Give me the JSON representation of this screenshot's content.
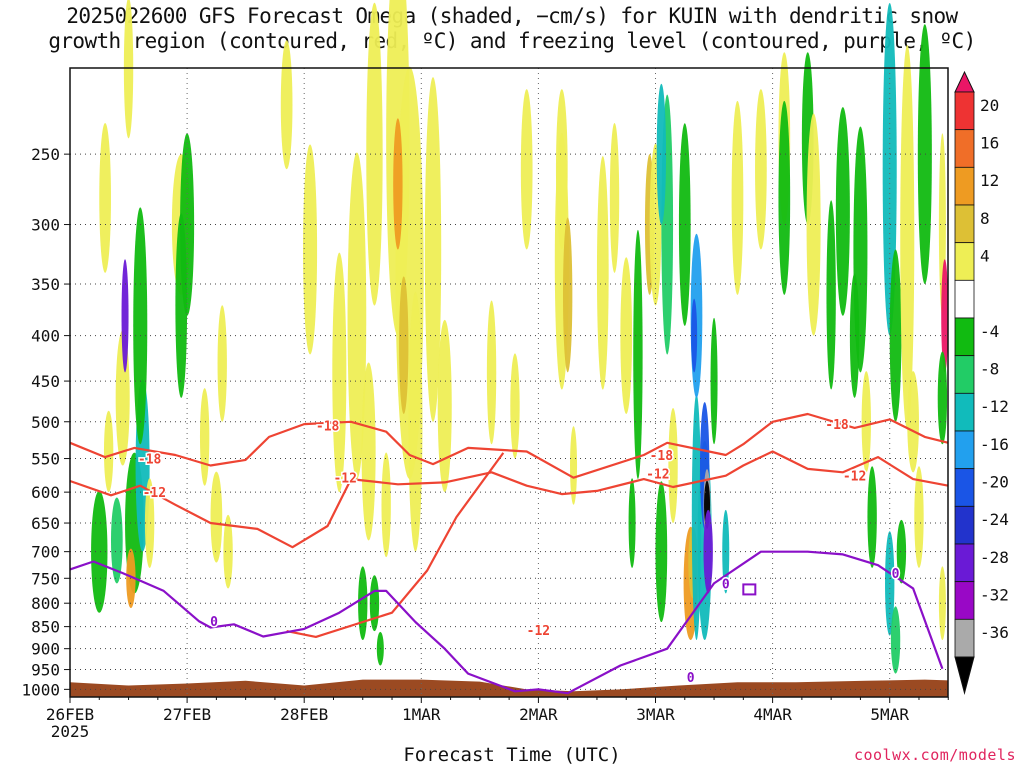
{
  "title_line1": "2025022600 GFS Forecast Omega (shaded, −cm/s) for KUIN with dendritic snow",
  "title_line2": "growth region (contoured, red, ºC) and freezing level (contoured, purple, ºC)",
  "xlabel": "Forecast Time (UTC)",
  "credit": "coolwx.com/models",
  "colors": {
    "dgz": "#ee4433",
    "freezing": "#8a10c8",
    "ground": "#9b4a22",
    "grid": "#888888"
  },
  "chart_data": {
    "type": "heatmap",
    "title": "2025022600 GFS Forecast Omega (shaded, −cm/s) for KUIN with dendritic snow growth region (contoured, red, ºC) and freezing level (contoured, purple, ºC)",
    "xlabel": "Forecast Time (UTC)",
    "ylabel": "",
    "x_ticks": [
      "26FEB",
      "27FEB",
      "28FEB",
      "1MAR",
      "2MAR",
      "3MAR",
      "4MAR",
      "5MAR"
    ],
    "x_ticks_sub": [
      "2025",
      "",
      "",
      "",
      "",
      "",
      "",
      ""
    ],
    "xlim_days": [
      0,
      7.5
    ],
    "y_ticks": [
      250,
      300,
      350,
      400,
      450,
      500,
      550,
      600,
      650,
      700,
      750,
      800,
      850,
      900,
      950,
      1000
    ],
    "ylim": [
      200,
      1020
    ],
    "colorbar": {
      "labels": [
        20,
        16,
        12,
        8,
        4,
        -4,
        -8,
        -12,
        -16,
        -20,
        -24,
        -28,
        -32,
        -36
      ],
      "colors": [
        "#ea1666",
        "#ee3333",
        "#f06e28",
        "#ee9b22",
        "#ddc035",
        "#eeee55",
        "#ffffff",
        "#11bb11",
        "#22cc66",
        "#11bbbb",
        "#22a0ee",
        "#1a55e6",
        "#2233cc",
        "#6a1ad6",
        "#9908c6",
        "#aaaaaa",
        "#000000"
      ]
    },
    "contour_labels": [
      {
        "text": "-18",
        "color": "dgz"
      },
      {
        "text": "-18",
        "color": "dgz"
      },
      {
        "text": "-18",
        "color": "dgz"
      },
      {
        "text": "-18",
        "color": "dgz"
      },
      {
        "text": "-12",
        "color": "dgz"
      },
      {
        "text": "-12",
        "color": "dgz"
      },
      {
        "text": "-12",
        "color": "dgz"
      },
      {
        "text": "-12",
        "color": "dgz"
      },
      {
        "text": "-12",
        "color": "dgz"
      },
      {
        "text": "0",
        "color": "freezing"
      },
      {
        "text": "0",
        "color": "freezing"
      },
      {
        "text": "0",
        "color": "freezing"
      },
      {
        "text": "0",
        "color": "freezing"
      }
    ],
    "dgz_upper_m18": [
      [
        0.0,
        528
      ],
      [
        0.3,
        548
      ],
      [
        0.55,
        535
      ],
      [
        0.9,
        545
      ],
      [
        1.2,
        560
      ],
      [
        1.5,
        552
      ],
      [
        1.7,
        520
      ],
      [
        2.0,
        503
      ],
      [
        2.4,
        500
      ],
      [
        2.7,
        513
      ],
      [
        2.9,
        545
      ],
      [
        3.1,
        558
      ],
      [
        3.4,
        535
      ],
      [
        3.9,
        540
      ],
      [
        4.3,
        578
      ],
      [
        4.9,
        545
      ],
      [
        5.1,
        528
      ],
      [
        5.6,
        545
      ],
      [
        5.75,
        530
      ],
      [
        6.0,
        500
      ],
      [
        6.3,
        490
      ],
      [
        6.7,
        508
      ],
      [
        7.0,
        497
      ],
      [
        7.3,
        520
      ],
      [
        7.5,
        528
      ]
    ],
    "dgz_lower_m12": [
      [
        0.0,
        583
      ],
      [
        0.35,
        605
      ],
      [
        0.6,
        590
      ],
      [
        0.9,
        620
      ],
      [
        1.2,
        650
      ],
      [
        1.6,
        660
      ],
      [
        1.9,
        692
      ],
      [
        2.2,
        655
      ],
      [
        2.4,
        580
      ],
      [
        2.8,
        588
      ],
      [
        3.2,
        585
      ],
      [
        3.6,
        570
      ],
      [
        3.9,
        590
      ],
      [
        4.2,
        603
      ],
      [
        4.5,
        598
      ],
      [
        4.9,
        580
      ],
      [
        5.15,
        592
      ],
      [
        5.6,
        575
      ],
      [
        5.75,
        560
      ],
      [
        6.0,
        540
      ],
      [
        6.3,
        565
      ],
      [
        6.6,
        570
      ],
      [
        6.9,
        548
      ],
      [
        7.2,
        580
      ],
      [
        7.5,
        590
      ]
    ],
    "dgz_low_branch_m12": [
      [
        3.7,
        542
      ],
      [
        3.3,
        640
      ],
      [
        3.05,
        735
      ],
      [
        2.75,
        820
      ],
      [
        2.1,
        873
      ],
      [
        1.85,
        860
      ]
    ],
    "freezing_level_0": [
      [
        0.0,
        733
      ],
      [
        0.2,
        718
      ],
      [
        0.45,
        740
      ],
      [
        0.8,
        775
      ],
      [
        1.1,
        838
      ],
      [
        1.2,
        852
      ],
      [
        1.4,
        845
      ],
      [
        1.65,
        872
      ],
      [
        2.0,
        855
      ],
      [
        2.3,
        820
      ],
      [
        2.6,
        775
      ],
      [
        2.7,
        775
      ],
      [
        2.95,
        840
      ],
      [
        3.2,
        900
      ],
      [
        3.4,
        960
      ],
      [
        3.8,
        1005
      ],
      [
        4.0,
        1000
      ],
      [
        4.25,
        1010
      ],
      [
        4.7,
        940
      ],
      [
        5.1,
        900
      ],
      [
        5.5,
        760
      ],
      [
        5.9,
        700
      ],
      [
        6.3,
        700
      ],
      [
        6.6,
        705
      ],
      [
        6.9,
        725
      ],
      [
        7.2,
        770
      ],
      [
        7.45,
        948
      ]
    ]
  }
}
